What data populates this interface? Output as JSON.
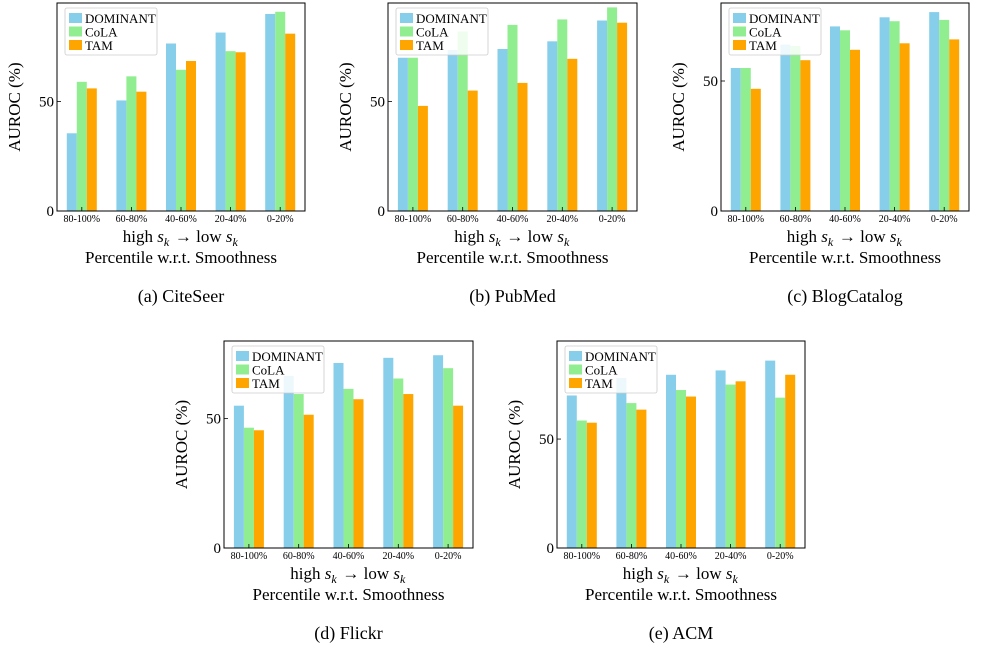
{
  "colors": {
    "DOMINANT": "#87CEEB",
    "CoLA": "#90EE90",
    "TAM": "#FFA500"
  },
  "shared": {
    "categories": [
      "80-100%",
      "60-80%",
      "40-60%",
      "20-40%",
      "0-20%"
    ],
    "ylabel": "AUROC (%)",
    "xlabel_main": "high s_k → low s_k",
    "xlabel_sub": "Percentile w.r.t. Smoothness",
    "yticks": [
      0,
      50
    ],
    "legend": [
      "DOMINANT",
      "CoLA",
      "TAM"
    ]
  },
  "chart_data": [
    {
      "type": "bar",
      "caption": "(a)  CiteSeer",
      "categories": [
        "80-100%",
        "60-80%",
        "40-60%",
        "20-40%",
        "0-20%"
      ],
      "ylim": [
        0,
        95
      ],
      "series": [
        {
          "name": "DOMINANT",
          "values": [
            35.5,
            50.5,
            76.5,
            81.5,
            90
          ]
        },
        {
          "name": "CoLA",
          "values": [
            59,
            61.5,
            64.5,
            73,
            91
          ]
        },
        {
          "name": "TAM",
          "values": [
            56,
            54.5,
            68.5,
            72.5,
            81
          ]
        }
      ],
      "legend_position": "top-left"
    },
    {
      "type": "bar",
      "caption": "(b)  PubMed",
      "categories": [
        "80-100%",
        "60-80%",
        "40-60%",
        "20-40%",
        "0-20%"
      ],
      "ylim": [
        0,
        95
      ],
      "series": [
        {
          "name": "DOMINANT",
          "values": [
            70,
            73.5,
            74,
            77.5,
            87
          ]
        },
        {
          "name": "CoLA",
          "values": [
            70,
            82,
            85,
            87.5,
            93
          ]
        },
        {
          "name": "TAM",
          "values": [
            48,
            55,
            58.5,
            69.5,
            86
          ]
        }
      ],
      "legend_position": "top-left"
    },
    {
      "type": "bar",
      "caption": "(c)  BlogCatalog",
      "categories": [
        "80-100%",
        "60-80%",
        "40-60%",
        "20-40%",
        "0-20%"
      ],
      "ylim": [
        0,
        80
      ],
      "series": [
        {
          "name": "DOMINANT",
          "values": [
            55,
            64,
            71,
            74.5,
            76.5
          ]
        },
        {
          "name": "CoLA",
          "values": [
            55,
            63.5,
            69.5,
            73,
            73.5
          ]
        },
        {
          "name": "TAM",
          "values": [
            47,
            58,
            62,
            64.5,
            66
          ]
        }
      ],
      "legend_position": "top-left"
    },
    {
      "type": "bar",
      "caption": "(d)  Flickr",
      "categories": [
        "80-100%",
        "60-80%",
        "40-60%",
        "20-40%",
        "0-20%"
      ],
      "ylim": [
        0,
        80
      ],
      "series": [
        {
          "name": "DOMINANT",
          "values": [
            55,
            66.5,
            71.5,
            73.5,
            74.5
          ]
        },
        {
          "name": "CoLA",
          "values": [
            46.5,
            59.5,
            61.5,
            65.5,
            69.5
          ]
        },
        {
          "name": "TAM",
          "values": [
            45.5,
            51.5,
            57.5,
            59.5,
            55
          ]
        }
      ],
      "legend_position": "top-left"
    },
    {
      "type": "bar",
      "caption": "(e)  ACM",
      "categories": [
        "80-100%",
        "60-80%",
        "40-60%",
        "20-40%",
        "0-20%"
      ],
      "ylim": [
        0,
        95
      ],
      "series": [
        {
          "name": "DOMINANT",
          "values": [
            70,
            78,
            79.5,
            81.5,
            86
          ]
        },
        {
          "name": "CoLA",
          "values": [
            58.5,
            66.5,
            72.5,
            75,
            69
          ]
        },
        {
          "name": "TAM",
          "values": [
            57.5,
            63.5,
            69.5,
            76.5,
            79.5
          ]
        }
      ],
      "legend_position": "top-left"
    }
  ]
}
